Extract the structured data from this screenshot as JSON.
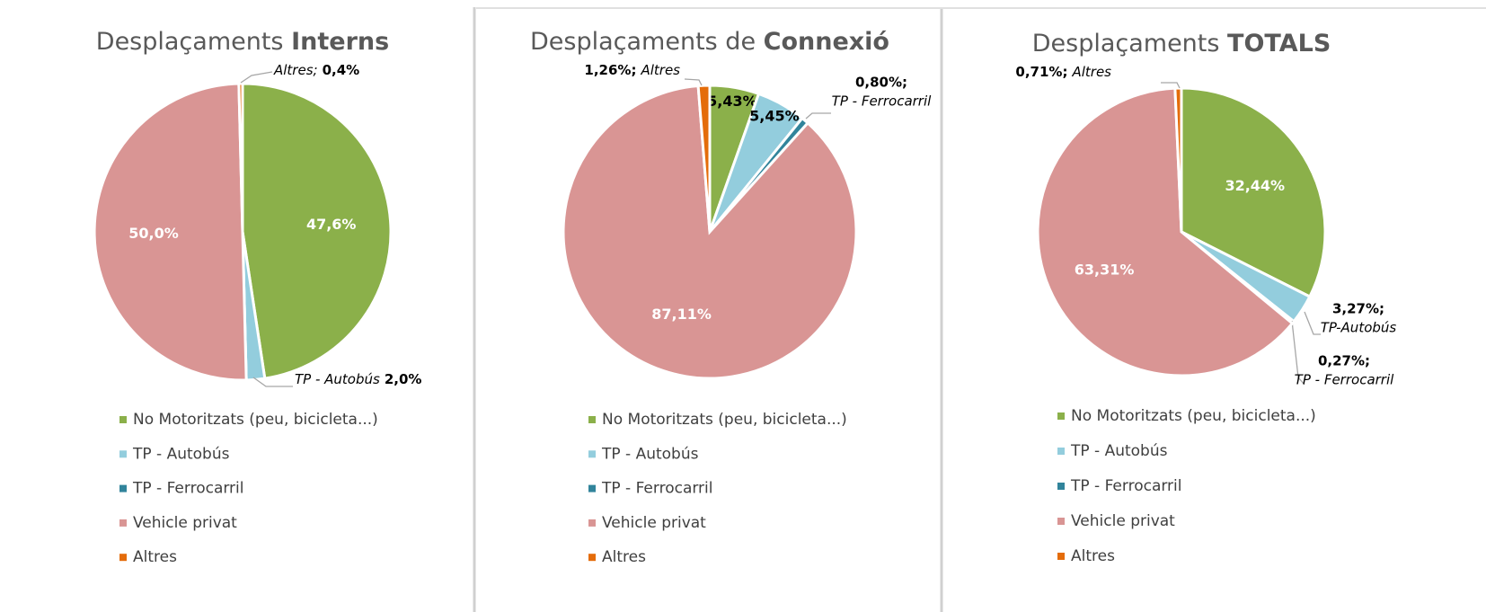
{
  "chart_data": [
    {
      "type": "pie",
      "title": "Desplaçaments Interns",
      "categories": [
        "No Motoritzats (peu, bicicleta...)",
        "TP - Autobús",
        "TP - Ferrocarril",
        "Vehicle privat",
        "Altres"
      ],
      "values": [
        47.6,
        2.0,
        0,
        50.0,
        0.4
      ],
      "value_labels": [
        "47,6%",
        "2,0%",
        null,
        "50,0%",
        "0,4%"
      ],
      "callout_labels": [
        null,
        "TP - Autobús",
        null,
        null,
        "Altres;"
      ],
      "colors": [
        "#8bb04a",
        "#93cddd",
        "#31849b",
        "#d99594",
        "#e46c0a"
      ]
    },
    {
      "type": "pie",
      "title": "Desplaçaments de Connexió",
      "categories": [
        "No Motoritzats (peu, bicicleta...)",
        "TP - Autobús",
        "TP - Ferrocarril",
        "Vehicle privat",
        "Altres"
      ],
      "values": [
        5.43,
        5.45,
        0.8,
        87.11,
        1.26
      ],
      "value_labels": [
        "5,43%",
        "5,45%",
        "0,80%;",
        "87,11%",
        "1,26%;"
      ],
      "callout_labels": [
        null,
        null,
        "TP - Ferrocarril",
        null,
        "Altres"
      ],
      "colors": [
        "#8bb04a",
        "#93cddd",
        "#31849b",
        "#d99594",
        "#e46c0a"
      ]
    },
    {
      "type": "pie",
      "title": "Desplaçaments TOTALS",
      "categories": [
        "No Motoritzats (peu, bicicleta...)",
        "TP - Autobús",
        "TP - Ferrocarril",
        "Vehicle privat",
        "Altres"
      ],
      "values": [
        32.44,
        3.27,
        0.27,
        63.31,
        0.71
      ],
      "value_labels": [
        "32,44%",
        "3,27%;",
        "0,27%;",
        "63,31%",
        "0,71%;"
      ],
      "callout_labels": [
        null,
        "TP-Autobús",
        "TP - Ferrocarril",
        null,
        "Altres"
      ],
      "colors": [
        "#8bb04a",
        "#93cddd",
        "#31849b",
        "#d99594",
        "#e46c0a"
      ]
    }
  ]
}
